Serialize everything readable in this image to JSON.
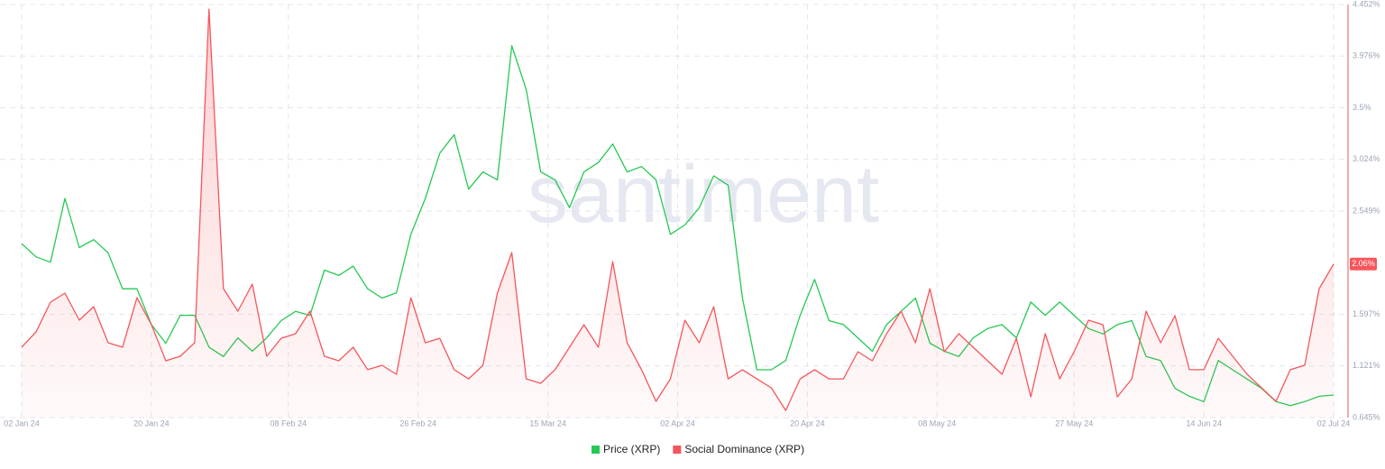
{
  "chart_data": {
    "type": "line",
    "watermark": "santiment",
    "x": [
      "2024-01-02",
      "2024-01-04",
      "2024-01-06",
      "2024-01-08",
      "2024-01-10",
      "2024-01-12",
      "2024-01-14",
      "2024-01-16",
      "2024-01-18",
      "2024-01-20",
      "2024-01-22",
      "2024-01-24",
      "2024-01-26",
      "2024-01-28",
      "2024-01-30",
      "2024-02-01",
      "2024-02-03",
      "2024-02-05",
      "2024-02-07",
      "2024-02-09",
      "2024-02-11",
      "2024-02-13",
      "2024-02-15",
      "2024-02-17",
      "2024-02-19",
      "2024-02-21",
      "2024-02-23",
      "2024-02-25",
      "2024-02-27",
      "2024-02-29",
      "2024-03-02",
      "2024-03-04",
      "2024-03-06",
      "2024-03-08",
      "2024-03-10",
      "2024-03-12",
      "2024-03-14",
      "2024-03-16",
      "2024-03-18",
      "2024-03-20",
      "2024-03-22",
      "2024-03-24",
      "2024-03-26",
      "2024-03-28",
      "2024-03-30",
      "2024-04-01",
      "2024-04-03",
      "2024-04-05",
      "2024-04-07",
      "2024-04-09",
      "2024-04-11",
      "2024-04-13",
      "2024-04-15",
      "2024-04-17",
      "2024-04-19",
      "2024-04-21",
      "2024-04-23",
      "2024-04-25",
      "2024-04-27",
      "2024-04-29",
      "2024-05-01",
      "2024-05-03",
      "2024-05-05",
      "2024-05-07",
      "2024-05-09",
      "2024-05-11",
      "2024-05-13",
      "2024-05-15",
      "2024-05-17",
      "2024-05-19",
      "2024-05-21",
      "2024-05-23",
      "2024-05-25",
      "2024-05-27",
      "2024-05-29",
      "2024-05-31",
      "2024-06-02",
      "2024-06-04",
      "2024-06-06",
      "2024-06-08",
      "2024-06-10",
      "2024-06-12",
      "2024-06-14",
      "2024-06-16",
      "2024-06-18",
      "2024-06-20",
      "2024-06-22",
      "2024-06-24",
      "2024-06-26",
      "2024-06-28",
      "2024-06-30",
      "2024-07-02"
    ],
    "xlim": [
      "2023-12-30",
      "2024-07-04"
    ],
    "xticks": [
      {
        "value": "2024-01-02",
        "label": "02 Jan 24"
      },
      {
        "value": "2024-01-20",
        "label": "20 Jan 24"
      },
      {
        "value": "2024-02-08",
        "label": "08 Feb 24"
      },
      {
        "value": "2024-02-26",
        "label": "26 Feb 24"
      },
      {
        "value": "2024-03-15",
        "label": "15 Mar 24"
      },
      {
        "value": "2024-04-02",
        "label": "02 Apr 24"
      },
      {
        "value": "2024-04-20",
        "label": "20 Apr 24"
      },
      {
        "value": "2024-05-08",
        "label": "08 May 24"
      },
      {
        "value": "2024-05-27",
        "label": "27 May 24"
      },
      {
        "value": "2024-06-14",
        "label": "14 Jun 24"
      },
      {
        "value": "2024-07-02",
        "label": "02 Jul 24"
      }
    ],
    "ylim": [
      0.428,
      0.739
    ],
    "y2lim": [
      0.645,
      4.452
    ],
    "y2ticks": [
      {
        "value": 0.645,
        "label": "0.645%"
      },
      {
        "value": 1.121,
        "label": "1.121%"
      },
      {
        "value": 1.597,
        "label": "1.597%"
      },
      {
        "value": 2.549,
        "label": "2.549%"
      },
      {
        "value": 3.024,
        "label": "3.024%"
      },
      {
        "value": 3.5,
        "label": "3.5%"
      },
      {
        "value": 3.976,
        "label": "3.976%"
      },
      {
        "value": 4.452,
        "label": "4.452%"
      }
    ],
    "grid": true,
    "legend": "bottom",
    "series": [
      {
        "name": "Price (XRP)",
        "color": "#26c953",
        "values": [
          0.559,
          0.549,
          0.545,
          0.593,
          0.556,
          0.562,
          0.552,
          0.525,
          0.525,
          0.498,
          0.484,
          0.505,
          0.505,
          0.481,
          0.474,
          0.488,
          0.478,
          0.488,
          0.501,
          0.508,
          0.505,
          0.539,
          0.535,
          0.542,
          0.525,
          0.518,
          0.522,
          0.566,
          0.593,
          0.627,
          0.641,
          0.6,
          0.613,
          0.607,
          0.708,
          0.675,
          0.613,
          0.607,
          0.586,
          0.613,
          0.62,
          0.634,
          0.613,
          0.617,
          0.607,
          0.566,
          0.573,
          0.586,
          0.61,
          0.603,
          0.518,
          0.464,
          0.464,
          0.471,
          0.505,
          0.532,
          0.501,
          0.498,
          0.488,
          0.478,
          0.498,
          0.508,
          0.518,
          0.484,
          0.478,
          0.474,
          0.488,
          0.495,
          0.498,
          0.488,
          0.515,
          0.505,
          0.515,
          0.505,
          0.495,
          0.491,
          0.498,
          0.501,
          0.474,
          0.471,
          0.45,
          0.444,
          0.44,
          0.471,
          0.464,
          0.457,
          0.45,
          0.44,
          0.437,
          0.44,
          0.444,
          0.445
        ]
      },
      {
        "name": "Social Dominance (XRP)",
        "color": "#f5565b",
        "axis": "y2",
        "values": [
          1.293,
          1.435,
          1.709,
          1.792,
          1.543,
          1.667,
          1.335,
          1.293,
          1.75,
          1.501,
          1.169,
          1.21,
          1.335,
          4.41,
          1.834,
          1.626,
          1.875,
          1.21,
          1.376,
          1.418,
          1.626,
          1.21,
          1.169,
          1.293,
          1.086,
          1.127,
          1.044,
          1.75,
          1.335,
          1.376,
          1.086,
          1.002,
          1.127,
          1.792,
          2.166,
          1.002,
          0.961,
          1.086,
          1.293,
          1.501,
          1.293,
          2.083,
          1.335,
          1.086,
          0.795,
          1.002,
          1.543,
          1.335,
          1.667,
          1.002,
          1.086,
          1.002,
          0.919,
          0.711,
          1.002,
          1.086,
          1.002,
          1.002,
          1.252,
          1.169,
          1.418,
          1.626,
          1.335,
          1.834,
          1.252,
          1.418,
          1.293,
          1.169,
          1.044,
          1.376,
          0.836,
          1.418,
          1.002,
          1.252,
          1.543,
          1.501,
          0.836,
          1.002,
          1.626,
          1.335,
          1.584,
          1.086,
          1.086,
          1.376,
          1.21,
          1.044,
          0.919,
          0.795,
          1.086,
          1.127,
          1.834,
          2.06
        ],
        "value_labels": [
          null,
          null,
          null,
          null,
          null,
          null,
          null,
          null,
          null,
          null,
          null,
          null,
          null,
          null,
          null,
          null,
          null,
          null,
          null,
          null,
          null,
          null,
          null,
          null,
          null,
          null,
          null,
          null,
          null,
          null,
          null,
          null,
          null,
          null,
          null,
          null,
          null,
          null,
          null,
          null,
          null,
          null,
          null,
          null,
          null,
          null,
          null,
          null,
          null,
          null,
          null,
          null,
          null,
          null,
          null,
          null,
          null,
          null,
          null,
          null,
          null,
          null,
          null,
          null,
          null,
          null,
          null,
          null,
          null,
          null,
          null,
          null,
          null,
          null,
          null,
          null,
          null,
          null,
          null,
          null,
          null,
          null,
          null,
          null,
          null,
          null,
          null,
          null,
          null,
          null,
          null,
          "2.06%"
        ]
      }
    ]
  }
}
